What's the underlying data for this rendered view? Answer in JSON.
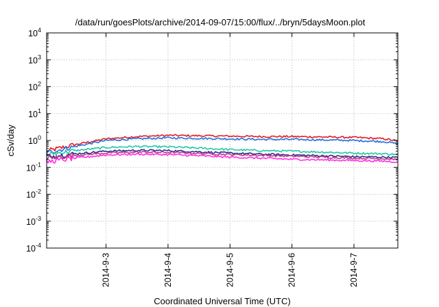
{
  "chart_data": {
    "type": "line",
    "title": "/data/run/goesPlots/archive/2014-09-07/15:00/flux/../bryn/5daysMoon.plot",
    "xlabel": "Coordinated Universal Time (UTC)",
    "ylabel": "cSv/day",
    "yscale": "log",
    "ylim": [
      0.0001,
      10000
    ],
    "xlim": [
      "2014-09-02T01:00",
      "2014-09-07T17:00"
    ],
    "x_ticks": [
      "2014-9-3",
      "2014-9-4",
      "2014-9-5",
      "2014-9-6",
      "2014-9-7"
    ],
    "y_ticks": [
      {
        "base": "10",
        "exp": "4"
      },
      {
        "base": "10",
        "exp": "3"
      },
      {
        "base": "10",
        "exp": "2"
      },
      {
        "base": "10",
        "exp": "1"
      },
      {
        "base": "10",
        "exp": "0"
      },
      {
        "base": "10",
        "exp": "-1"
      },
      {
        "base": "10",
        "exp": "-2"
      },
      {
        "base": "10",
        "exp": "-3"
      },
      {
        "base": "10",
        "exp": "-4"
      }
    ],
    "grid": true,
    "series": [
      {
        "color": "#e31a1c",
        "x": [
          "2014-09-02T01:00",
          "2014-09-02T12:00",
          "2014-09-03T00:00",
          "2014-09-03T12:00",
          "2014-09-04T00:00",
          "2014-09-04T12:00",
          "2014-09-05T00:00",
          "2014-09-05T12:00",
          "2014-09-06T00:00",
          "2014-09-06T12:00",
          "2014-09-07T00:00",
          "2014-09-07T12:00",
          "2014-09-07T17:00"
        ],
        "values": [
          0.4,
          0.7,
          1.15,
          1.4,
          1.55,
          1.5,
          1.45,
          1.4,
          1.4,
          1.35,
          1.3,
          1.15,
          0.95
        ]
      },
      {
        "color": "#1f6fe5",
        "x": [
          "2014-09-02T01:00",
          "2014-09-02T12:00",
          "2014-09-03T00:00",
          "2014-09-03T12:00",
          "2014-09-04T00:00",
          "2014-09-04T12:00",
          "2014-09-05T00:00",
          "2014-09-05T12:00",
          "2014-09-06T00:00",
          "2014-09-06T12:00",
          "2014-09-07T00:00",
          "2014-09-07T12:00",
          "2014-09-07T17:00"
        ],
        "values": [
          0.35,
          0.6,
          1.0,
          1.15,
          1.25,
          1.2,
          1.15,
          1.1,
          1.1,
          1.05,
          1.0,
          0.9,
          0.75
        ]
      },
      {
        "color": "#1fc8a0",
        "x": [
          "2014-09-02T01:00",
          "2014-09-02T12:00",
          "2014-09-03T00:00",
          "2014-09-03T12:00",
          "2014-09-04T00:00",
          "2014-09-04T12:00",
          "2014-09-05T00:00",
          "2014-09-05T12:00",
          "2014-09-06T00:00",
          "2014-09-06T12:00",
          "2014-09-07T00:00",
          "2014-09-07T12:00",
          "2014-09-07T17:00"
        ],
        "values": [
          0.3,
          0.42,
          0.55,
          0.6,
          0.58,
          0.52,
          0.46,
          0.42,
          0.4,
          0.37,
          0.34,
          0.32,
          0.3
        ]
      },
      {
        "color": "#2b2b8c",
        "x": [
          "2014-09-02T01:00",
          "2014-09-02T12:00",
          "2014-09-03T00:00",
          "2014-09-03T12:00",
          "2014-09-04T00:00",
          "2014-09-04T12:00",
          "2014-09-05T00:00",
          "2014-09-05T12:00",
          "2014-09-06T00:00",
          "2014-09-06T12:00",
          "2014-09-07T00:00",
          "2014-09-07T12:00",
          "2014-09-07T17:00"
        ],
        "values": [
          0.25,
          0.32,
          0.4,
          0.43,
          0.42,
          0.38,
          0.34,
          0.31,
          0.29,
          0.27,
          0.25,
          0.24,
          0.23
        ]
      },
      {
        "color": "#c0388a",
        "x": [
          "2014-09-02T01:00",
          "2014-09-02T12:00",
          "2014-09-03T00:00",
          "2014-09-03T12:00",
          "2014-09-04T00:00",
          "2014-09-04T12:00",
          "2014-09-05T00:00",
          "2014-09-05T12:00",
          "2014-09-06T00:00",
          "2014-09-06T12:00",
          "2014-09-07T00:00",
          "2014-09-07T12:00",
          "2014-09-07T17:00"
        ],
        "values": [
          0.22,
          0.28,
          0.34,
          0.37,
          0.36,
          0.33,
          0.3,
          0.28,
          0.26,
          0.24,
          0.22,
          0.21,
          0.2
        ]
      },
      {
        "color": "#ff2ee0",
        "x": [
          "2014-09-02T01:00",
          "2014-09-02T12:00",
          "2014-09-03T00:00",
          "2014-09-03T12:00",
          "2014-09-04T00:00",
          "2014-09-04T12:00",
          "2014-09-05T00:00",
          "2014-09-05T12:00",
          "2014-09-06T00:00",
          "2014-09-06T12:00",
          "2014-09-07T00:00",
          "2014-09-07T12:00",
          "2014-09-07T17:00"
        ],
        "values": [
          0.16,
          0.22,
          0.29,
          0.31,
          0.3,
          0.27,
          0.24,
          0.22,
          0.2,
          0.19,
          0.18,
          0.17,
          0.16
        ]
      }
    ]
  }
}
